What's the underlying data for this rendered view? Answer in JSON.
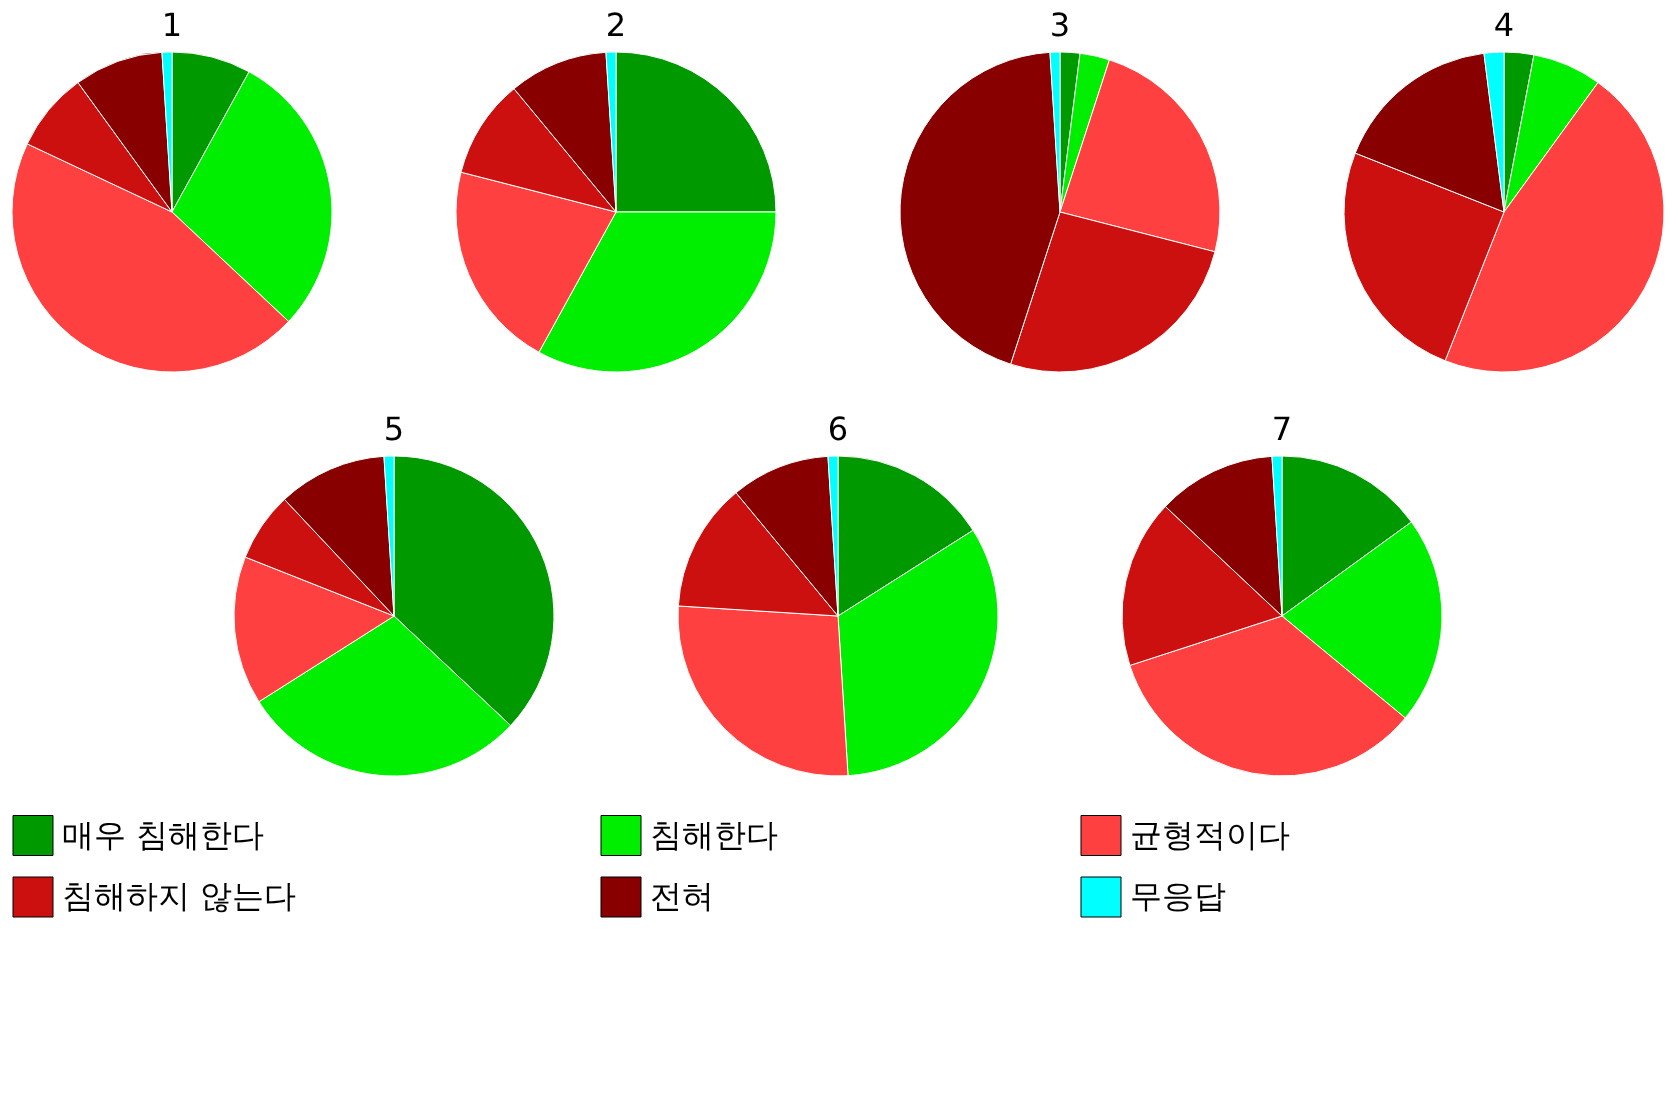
{
  "chart_data": [
    {
      "type": "pie",
      "title": "1",
      "categories": [
        "매우 침해한다",
        "침해한다",
        "균형적이다",
        "침해하지 않는다",
        "전혀",
        "무응답"
      ],
      "values": [
        8,
        29,
        45,
        8,
        9,
        1
      ],
      "colors": [
        "#009900",
        "#00ee00",
        "#ff4040",
        "#cc1010",
        "#880000",
        "#00ffff"
      ],
      "legend": "bottom"
    },
    {
      "type": "pie",
      "title": "2",
      "values": [
        25,
        33,
        21,
        10,
        10,
        1
      ],
      "colors": [
        "#009900",
        "#00ee00",
        "#ff4040",
        "#cc1010",
        "#880000",
        "#00ffff"
      ]
    },
    {
      "type": "pie",
      "title": "3",
      "values": [
        2,
        3,
        24,
        26,
        44,
        1
      ],
      "colors": [
        "#009900",
        "#00ee00",
        "#ff4040",
        "#cc1010",
        "#880000",
        "#00ffff"
      ]
    },
    {
      "type": "pie",
      "title": "4",
      "values": [
        3,
        7,
        46,
        25,
        17,
        2
      ],
      "colors": [
        "#009900",
        "#00ee00",
        "#ff4040",
        "#cc1010",
        "#880000",
        "#00ffff"
      ]
    },
    {
      "type": "pie",
      "title": "5",
      "values": [
        37,
        29,
        15,
        7,
        11,
        1
      ],
      "colors": [
        "#009900",
        "#00ee00",
        "#ff4040",
        "#cc1010",
        "#880000",
        "#00ffff"
      ]
    },
    {
      "type": "pie",
      "title": "6",
      "values": [
        16,
        33,
        27,
        13,
        10,
        1
      ],
      "colors": [
        "#009900",
        "#00ee00",
        "#ff4040",
        "#cc1010",
        "#880000",
        "#00ffff"
      ]
    },
    {
      "type": "pie",
      "title": "7",
      "values": [
        15,
        21,
        34,
        17,
        12,
        1
      ],
      "colors": [
        "#009900",
        "#00ee00",
        "#ff4040",
        "#cc1010",
        "#880000",
        "#00ffff"
      ]
    }
  ]
}
